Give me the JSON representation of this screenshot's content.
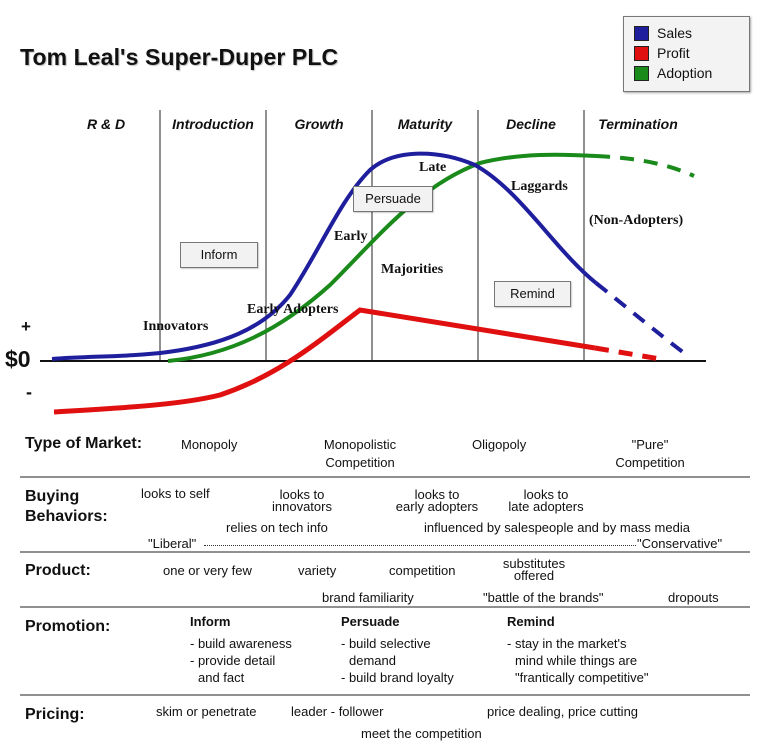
{
  "title": "Tom Leal's Super-Duper PLC",
  "legend": [
    {
      "label": "Sales",
      "color": "#1f1f9e"
    },
    {
      "label": "Profit",
      "color": "#e01010"
    },
    {
      "label": "Adoption",
      "color": "#1a8a1a"
    }
  ],
  "stages": [
    "R & D",
    "Introduction",
    "Growth",
    "Maturity",
    "Decline",
    "Termination"
  ],
  "axis": {
    "plus": "+",
    "zero": "$0",
    "minus": "-"
  },
  "adopter_labels": {
    "innovators": "Innovators",
    "early_adopters": "Early Adopters",
    "early": "Early",
    "majorities": "Majorities",
    "late": "Late",
    "laggards": "Laggards",
    "non_adopters": "(Non-Adopters)"
  },
  "promo_boxes": {
    "inform": "Inform",
    "persuade": "Persuade",
    "remind": "Remind"
  },
  "market": {
    "heading": "Type of Market:",
    "items": [
      "Monopoly",
      "Monopolistic",
      "Competition",
      "Oligopoly",
      "\"Pure\"",
      "Competition"
    ]
  },
  "buying": {
    "heading1": "Buying",
    "heading2": "Behaviors:",
    "items": [
      "looks to self",
      "looks to",
      "innovators",
      "looks to",
      "early adopters",
      "looks to",
      "late adopters",
      "relies on tech info",
      "influenced by salespeople and by mass media"
    ],
    "spectrum_left": "\"Liberal\"",
    "spectrum_right": "\"Conservative\""
  },
  "product": {
    "heading": "Product:",
    "items": [
      "one or very few",
      "variety",
      "competition",
      "substitutes",
      "offered",
      "brand familiarity",
      "\"battle of the brands\"",
      "dropouts"
    ]
  },
  "promotion": {
    "heading": "Promotion:",
    "inform": {
      "title": "Inform",
      "lines": [
        "- build awareness",
        "- provide detail",
        "and fact"
      ]
    },
    "persuade": {
      "title": "Persuade",
      "lines": [
        "- build selective",
        "demand",
        "- build brand loyalty"
      ]
    },
    "remind": {
      "title": "Remind",
      "lines": [
        "- stay in the market's",
        "mind while things are",
        "\"frantically competitive\""
      ]
    }
  },
  "pricing": {
    "heading": "Pricing:",
    "items": [
      "skim or penetrate",
      "leader - follower",
      "price dealing, price cutting",
      "meet the competition"
    ]
  }
}
